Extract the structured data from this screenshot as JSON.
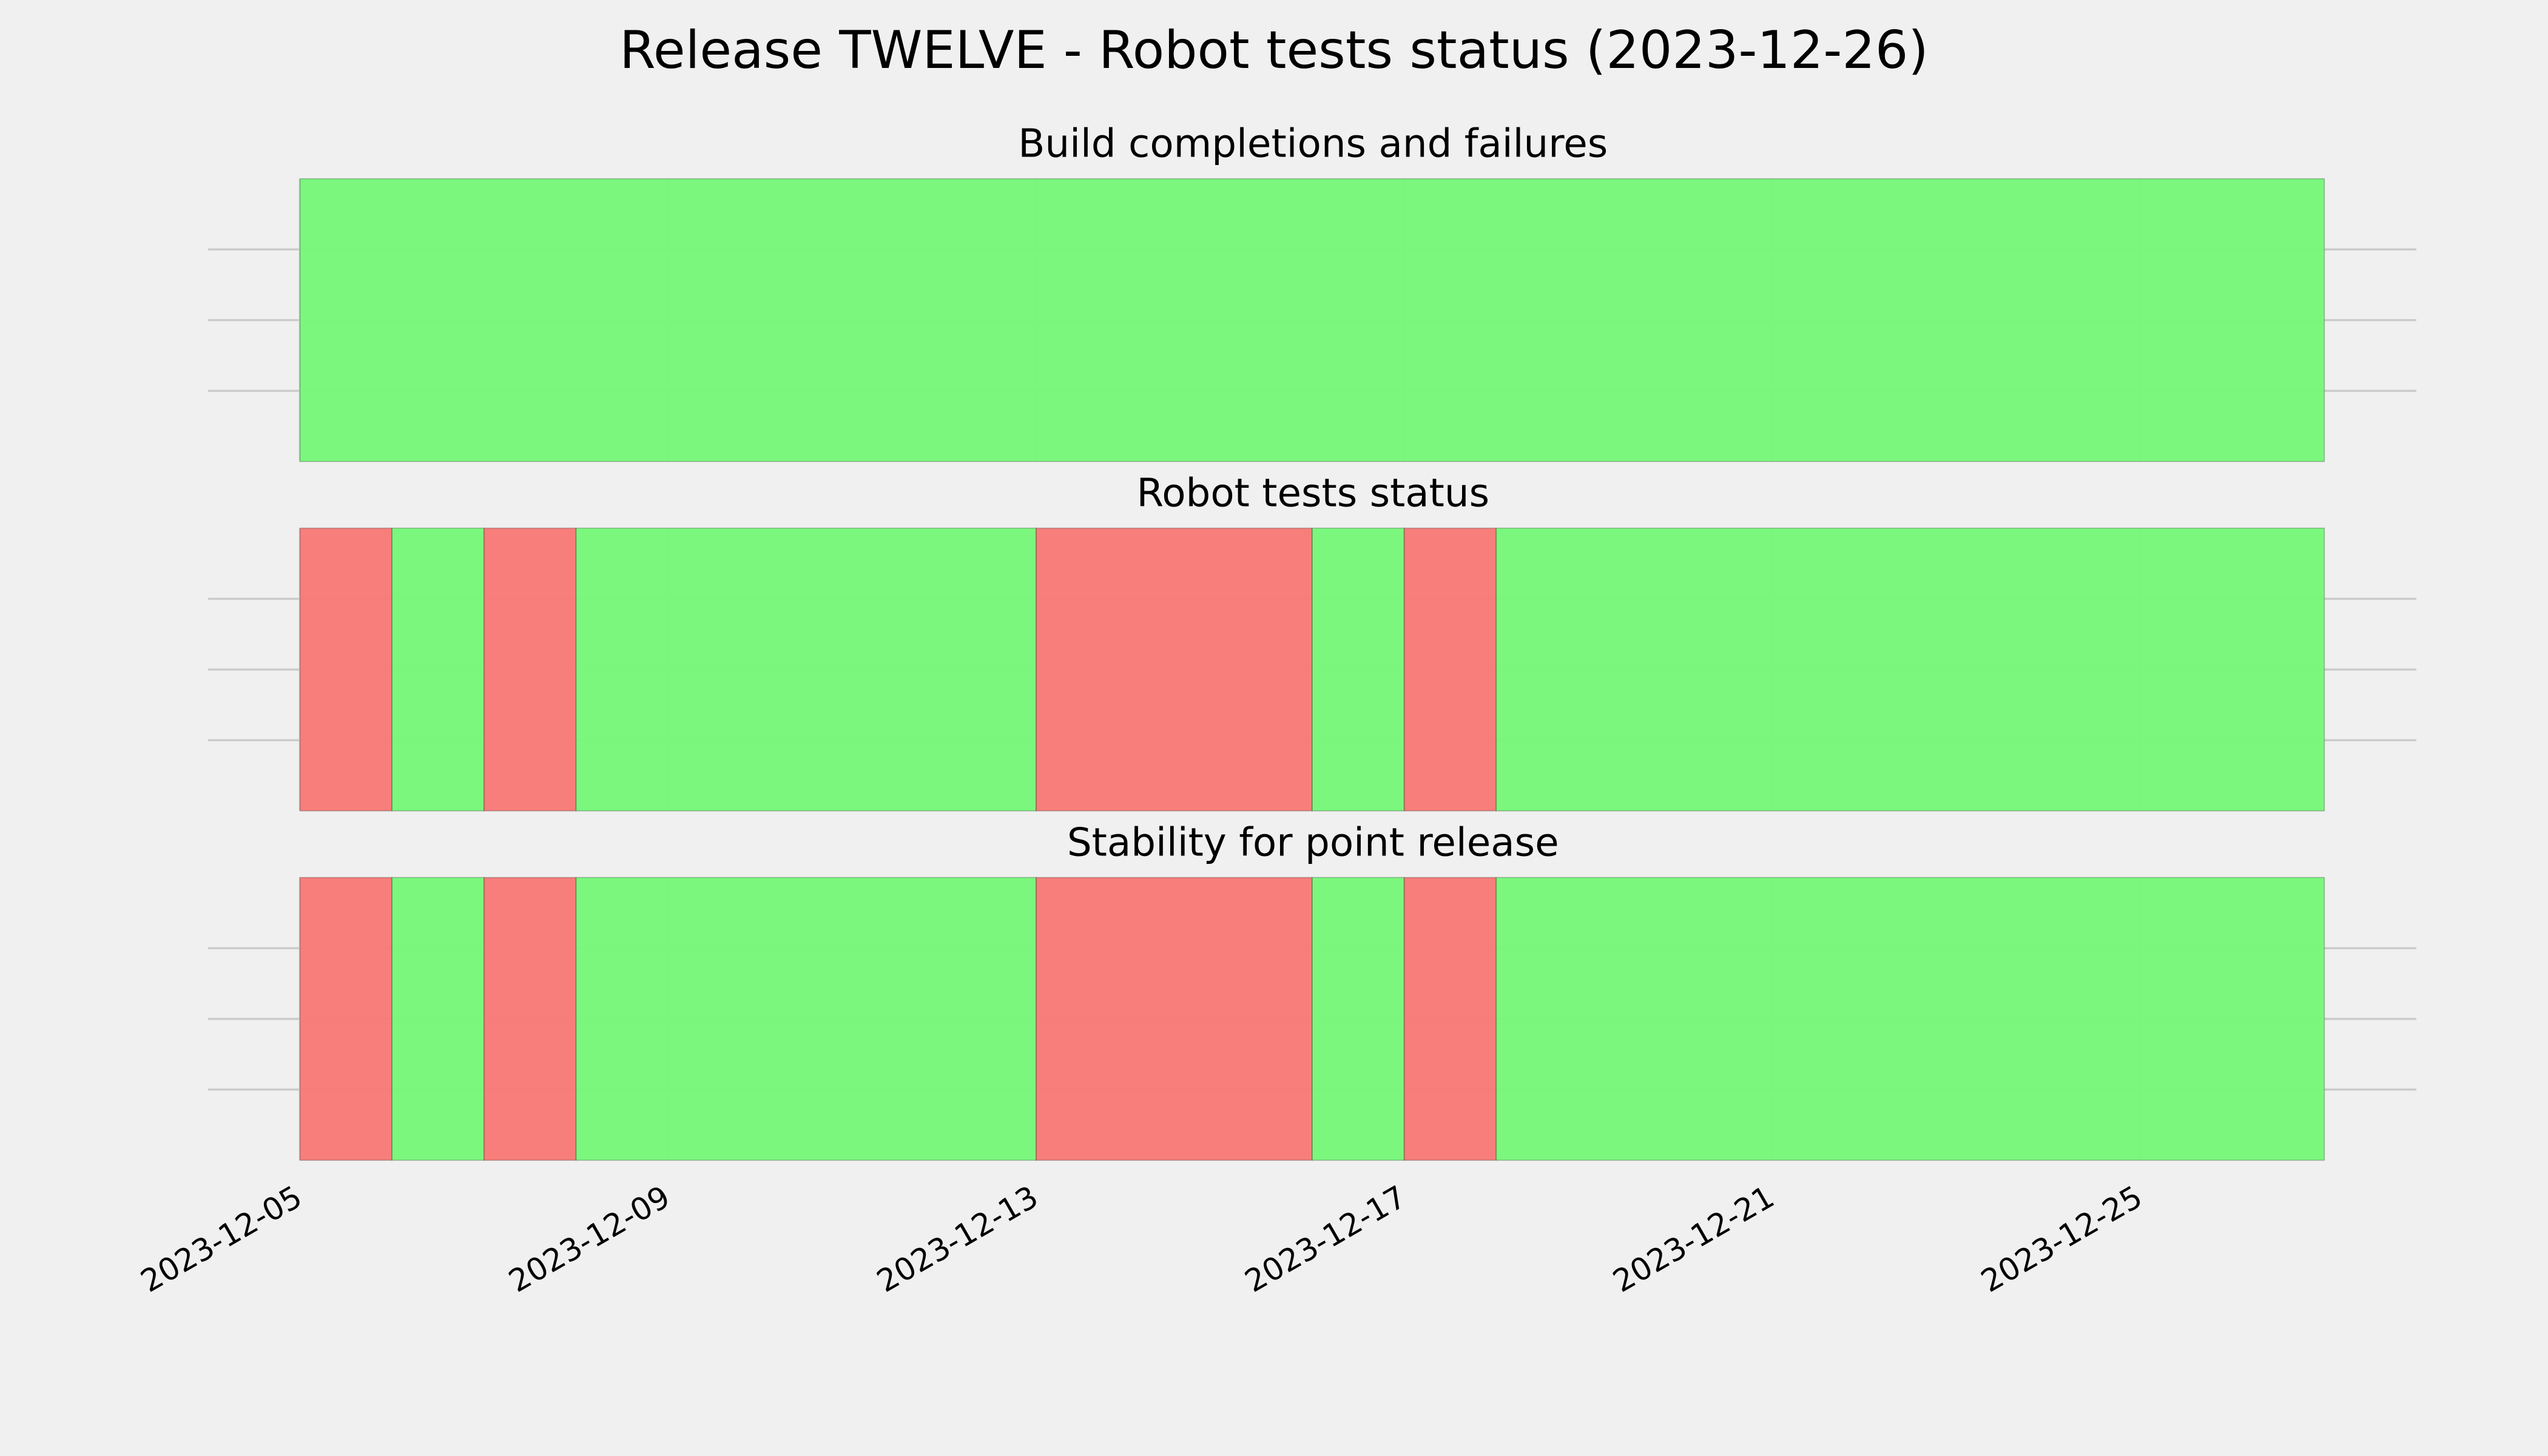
{
  "title": "Release TWELVE - Robot tests status (2023-12-26)",
  "chart_data": [
    {
      "type": "timeline",
      "title": "Build completions and failures",
      "segments": [
        {
          "start": "2023-12-05",
          "end": "2023-12-27",
          "color": "#77f77a"
        }
      ],
      "xlim": [
        "2023-12-04",
        "2023-12-28"
      ],
      "xticks": [
        "2023-12-05",
        "2023-12-09",
        "2023-12-13",
        "2023-12-17",
        "2023-12-21",
        "2023-12-25"
      ],
      "ylim": [
        0,
        1
      ],
      "yticks": [
        0.25,
        0.5,
        0.75
      ],
      "grid": true,
      "show_xtick_labels": false
    },
    {
      "type": "timeline",
      "title": "Robot tests status",
      "segments": [
        {
          "start": "2023-12-05",
          "end": "2023-12-06",
          "color": "#f77a77"
        },
        {
          "start": "2023-12-06",
          "end": "2023-12-07",
          "color": "#77f77a"
        },
        {
          "start": "2023-12-07",
          "end": "2023-12-08",
          "color": "#f77a77"
        },
        {
          "start": "2023-12-08",
          "end": "2023-12-13",
          "color": "#77f77a"
        },
        {
          "start": "2023-12-13",
          "end": "2023-12-16",
          "color": "#f77a77"
        },
        {
          "start": "2023-12-16",
          "end": "2023-12-17",
          "color": "#77f77a"
        },
        {
          "start": "2023-12-17",
          "end": "2023-12-18",
          "color": "#f77a77"
        },
        {
          "start": "2023-12-18",
          "end": "2023-12-27",
          "color": "#77f77a"
        }
      ],
      "xlim": [
        "2023-12-04",
        "2023-12-28"
      ],
      "xticks": [
        "2023-12-05",
        "2023-12-09",
        "2023-12-13",
        "2023-12-17",
        "2023-12-21",
        "2023-12-25"
      ],
      "ylim": [
        0,
        1
      ],
      "yticks": [
        0.25,
        0.5,
        0.75
      ],
      "grid": true,
      "show_xtick_labels": false
    },
    {
      "type": "timeline",
      "title": "Stability for point release",
      "segments": [
        {
          "start": "2023-12-05",
          "end": "2023-12-06",
          "color": "#f77a77"
        },
        {
          "start": "2023-12-06",
          "end": "2023-12-07",
          "color": "#77f77a"
        },
        {
          "start": "2023-12-07",
          "end": "2023-12-08",
          "color": "#f77a77"
        },
        {
          "start": "2023-12-08",
          "end": "2023-12-13",
          "color": "#77f77a"
        },
        {
          "start": "2023-12-13",
          "end": "2023-12-16",
          "color": "#f77a77"
        },
        {
          "start": "2023-12-16",
          "end": "2023-12-17",
          "color": "#77f77a"
        },
        {
          "start": "2023-12-17",
          "end": "2023-12-18",
          "color": "#f77a77"
        },
        {
          "start": "2023-12-18",
          "end": "2023-12-27",
          "color": "#77f77a"
        }
      ],
      "xlim": [
        "2023-12-04",
        "2023-12-28"
      ],
      "xticks": [
        "2023-12-05",
        "2023-12-09",
        "2023-12-13",
        "2023-12-17",
        "2023-12-21",
        "2023-12-25"
      ],
      "ylim": [
        0,
        1
      ],
      "yticks": [
        0.25,
        0.5,
        0.75
      ],
      "grid": true,
      "show_xtick_labels": true
    }
  ]
}
